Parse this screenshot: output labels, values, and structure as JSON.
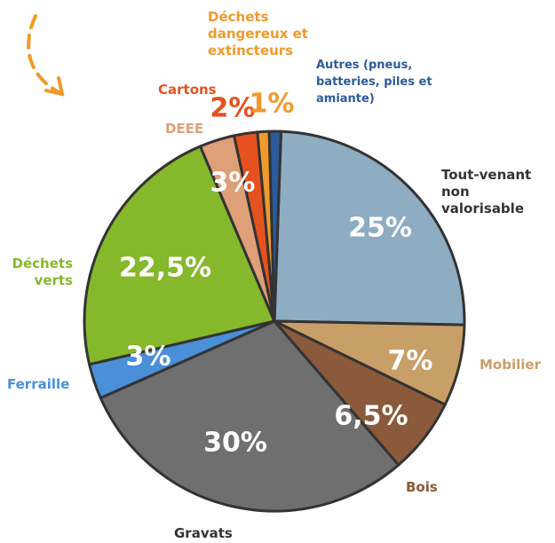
{
  "chart_data": {
    "type": "pie",
    "categories": [
      "Tout-venant non valorisable",
      "Mobilier",
      "Bois",
      "Gravats",
      "Ferraille",
      "Déchets verts",
      "DEEE",
      "Cartons",
      "Déchets dangereux et extincteurs",
      "Autres (pneus, batteries, piles et amiante)"
    ],
    "values": [
      25,
      7,
      6.5,
      30,
      3,
      22.5,
      3,
      2,
      1,
      1
    ],
    "value_labels": [
      "25%",
      "7%",
      "6,5%",
      "30%",
      "3%",
      "22,5%",
      "3%",
      "2%",
      "1%",
      null
    ],
    "colors": [
      "#8eacc2",
      "#c99f68",
      "#8a5a3b",
      "#6f6f6f",
      "#4a90d8",
      "#86b82b",
      "#df9f78",
      "#e6521f",
      "#f09a2c",
      "#2c5b9c"
    ]
  }
}
